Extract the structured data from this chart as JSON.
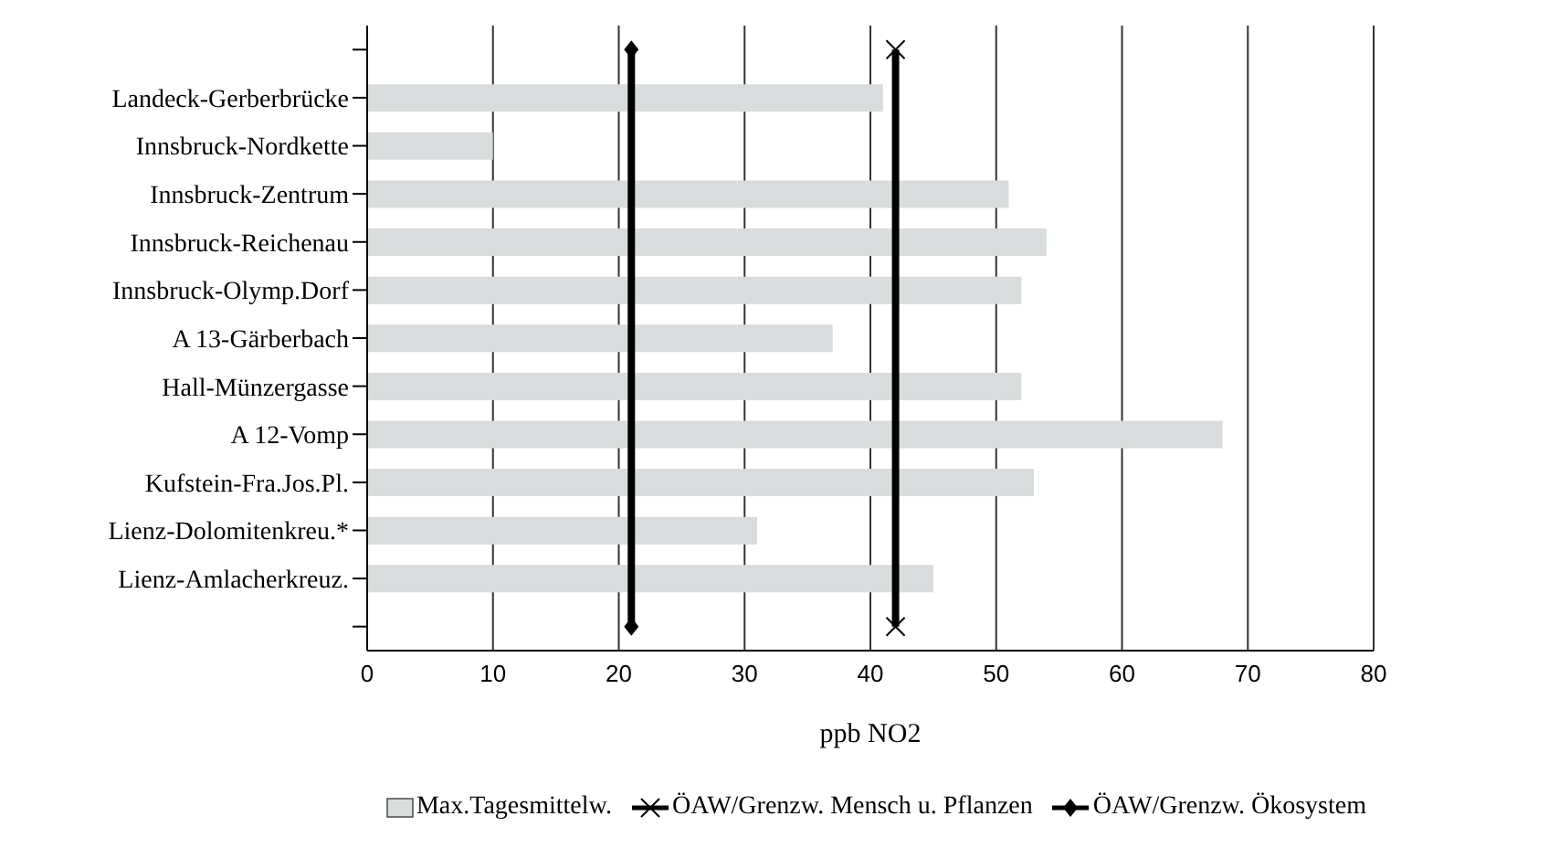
{
  "chart_data": {
    "type": "bar",
    "orientation": "horizontal",
    "xlabel": "ppb NO2",
    "categories": [
      null,
      "Landeck-Gerberbrücke",
      "Innsbruck-Nordkette",
      "Innsbruck-Zentrum",
      "Innsbruck-Reichenau",
      "Innsbruck-Olymp.Dorf",
      "A 13-Gärberbach",
      "Hall-Münzergasse",
      "A 12-Vomp",
      "Kufstein-Fra.Jos.Pl.",
      "Lienz-Dolomitenkreu.*",
      "Lienz-Amlacherkreuz.",
      null
    ],
    "series": [
      {
        "name": "Max.Tagesmittelw.",
        "color": "#d9dcdc",
        "values": [
          null,
          41,
          10,
          51,
          54,
          52,
          37,
          52,
          68,
          53,
          31,
          45,
          null
        ]
      },
      {
        "name": "ÖAW/Grenzw. Mensch u. Pflanzen",
        "type": "line",
        "marker": "cross",
        "color": "#000000",
        "values": [
          42,
          null,
          null,
          null,
          null,
          null,
          null,
          null,
          null,
          null,
          null,
          null,
          42
        ]
      },
      {
        "name": "ÖAW/Grenzw. Ökosystem",
        "type": "line",
        "marker": "diamond",
        "color": "#000000",
        "values": [
          21,
          null,
          null,
          null,
          null,
          null,
          null,
          null,
          null,
          null,
          null,
          null,
          21
        ]
      }
    ],
    "xlim": [
      0,
      80
    ],
    "xticks": [
      0,
      10,
      20,
      30,
      40,
      50,
      60,
      70,
      80
    ],
    "grid": "x",
    "legend": "bottom"
  }
}
